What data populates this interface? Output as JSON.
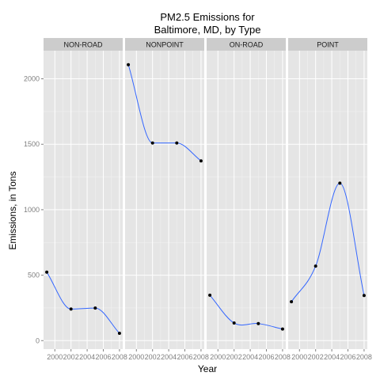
{
  "chart_data": {
    "type": "line",
    "title_lines": [
      "PM2.5 Emissions for",
      "Baltimore, MD, by Type"
    ],
    "xlabel": "Year",
    "ylabel": "Emissions, in Tons",
    "x": [
      1999,
      2002,
      2005,
      2008
    ],
    "x_ticks": [
      2000,
      2002,
      2004,
      2006,
      2008
    ],
    "y_ticks": [
      0,
      500,
      1000,
      1500,
      2000
    ],
    "xlim": [
      1998.6,
      2008.4
    ],
    "ylim": [
      -65,
      2215
    ],
    "grid": true,
    "line_color": "#3366ff",
    "point_color": "#000000",
    "panels": [
      {
        "name": "NON-ROAD",
        "values": [
          522.9,
          240.8,
          248.9,
          55.8
        ]
      },
      {
        "name": "NONPOINT",
        "values": [
          2107.6,
          1509.5,
          1509.5,
          1373.2
        ]
      },
      {
        "name": "ON-ROAD",
        "values": [
          346.8,
          134.3,
          130.4,
          88.3
        ]
      },
      {
        "name": "POINT",
        "values": [
          296.8,
          569.3,
          1202.5,
          344.98
        ]
      }
    ]
  }
}
